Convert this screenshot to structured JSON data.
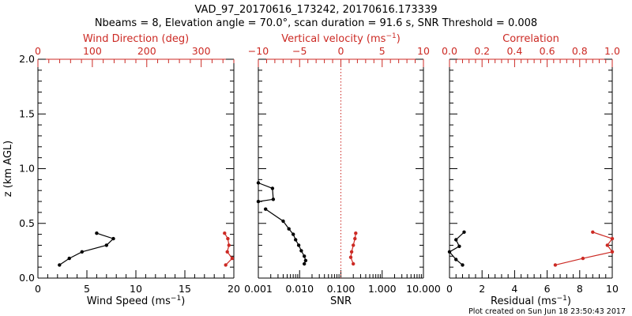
{
  "title_line1": "VAD_97_20170616_173242, 20170616.173339",
  "title_line2": "Nbeams = 8, Elevation angle = 70.0°, scan duration = 91.6 s, SNR Threshold = 0.008",
  "footer": "Plot created on Sun Jun 18 23:50:43 2017",
  "colors": {
    "primary": "#000000",
    "secondary": "#cc2a24"
  },
  "chart_data": [
    {
      "type": "line",
      "panel": "wind",
      "ylabel": "z (km AGL)",
      "ylim": [
        0,
        2
      ],
      "yticks": [
        "0.0",
        "0.5",
        "1.0",
        "1.5",
        "2.0"
      ],
      "bottom_axis": {
        "label": "Wind Speed (ms⁻¹)",
        "range": [
          0,
          20
        ],
        "ticks": [
          "0",
          "5",
          "10",
          "15",
          "20"
        ]
      },
      "top_axis": {
        "label": "Wind Direction (deg)",
        "range": [
          0,
          360
        ],
        "ticks": [
          "0",
          "100",
          "200",
          "300"
        ]
      },
      "series": [
        {
          "axis": "bottom",
          "color": "#000000",
          "points": [
            [
              2.2,
              0.12
            ],
            [
              3.2,
              0.18
            ],
            [
              4.5,
              0.24
            ],
            [
              7.0,
              0.3
            ],
            [
              7.7,
              0.36
            ],
            [
              6.0,
              0.41
            ]
          ]
        },
        {
          "axis": "top",
          "color": "#cc2a24",
          "points": [
            [
              345,
              0.12
            ],
            [
              357,
              0.18
            ],
            [
              348,
              0.24
            ],
            [
              351,
              0.3
            ],
            [
              349,
              0.36
            ],
            [
              343,
              0.41
            ]
          ]
        }
      ]
    },
    {
      "type": "line",
      "panel": "snr",
      "ylim": [
        0,
        2
      ],
      "bottom_axis": {
        "label": "SNR",
        "scale": "log",
        "range": [
          0.001,
          10
        ],
        "ticks": [
          "0.001",
          "0.010",
          "0.100",
          "1.000",
          "10.000"
        ]
      },
      "top_axis": {
        "label": "Vertical velocity (ms⁻¹)",
        "range": [
          -10,
          10
        ],
        "ticks": [
          "−10",
          "−5",
          "0",
          "5",
          "10"
        ],
        "reference_line": 0
      },
      "series": [
        {
          "axis": "bottom",
          "color": "#000000",
          "points": [
            [
              0.0015,
              0.63
            ],
            [
              0.004,
              0.52
            ],
            [
              0.0055,
              0.45
            ],
            [
              0.007,
              0.4
            ],
            [
              0.008,
              0.35
            ],
            [
              0.0095,
              0.3
            ],
            [
              0.011,
              0.25
            ],
            [
              0.013,
              0.2
            ],
            [
              0.014,
              0.16
            ],
            [
              0.013,
              0.13
            ]
          ]
        },
        {
          "axis": "bottom",
          "color": "#000000",
          "points": [
            [
              0.001,
              0.87
            ],
            [
              0.0022,
              0.82
            ],
            [
              0.0023,
              0.72
            ],
            [
              0.001,
              0.7
            ]
          ]
        },
        {
          "axis": "top",
          "color": "#cc2a24",
          "points": [
            [
              1.5,
              0.13
            ],
            [
              1.2,
              0.19
            ],
            [
              1.3,
              0.24
            ],
            [
              1.5,
              0.3
            ],
            [
              1.7,
              0.36
            ],
            [
              1.8,
              0.41
            ]
          ]
        }
      ]
    },
    {
      "type": "line",
      "panel": "residual",
      "ylim": [
        0,
        2
      ],
      "bottom_axis": {
        "label": "Residual (ms⁻¹)",
        "range": [
          0,
          10
        ],
        "ticks": [
          "0",
          "2",
          "4",
          "6",
          "8",
          "10"
        ]
      },
      "top_axis": {
        "label": "Correlation",
        "range": [
          0,
          1
        ],
        "ticks": [
          "0.0",
          "0.2",
          "0.4",
          "0.6",
          "0.8",
          "1.0"
        ]
      },
      "series": [
        {
          "axis": "bottom",
          "color": "#000000",
          "points": [
            [
              0.8,
              0.12
            ],
            [
              0.4,
              0.17
            ],
            [
              0.0,
              0.24
            ],
            [
              0.6,
              0.29
            ],
            [
              0.4,
              0.35
            ],
            [
              0.9,
              0.42
            ]
          ]
        },
        {
          "axis": "top",
          "color": "#cc2a24",
          "points": [
            [
              0.65,
              0.12
            ],
            [
              0.82,
              0.18
            ],
            [
              1.0,
              0.24
            ],
            [
              0.97,
              0.3
            ],
            [
              1.0,
              0.36
            ],
            [
              0.88,
              0.42
            ]
          ]
        }
      ]
    }
  ]
}
